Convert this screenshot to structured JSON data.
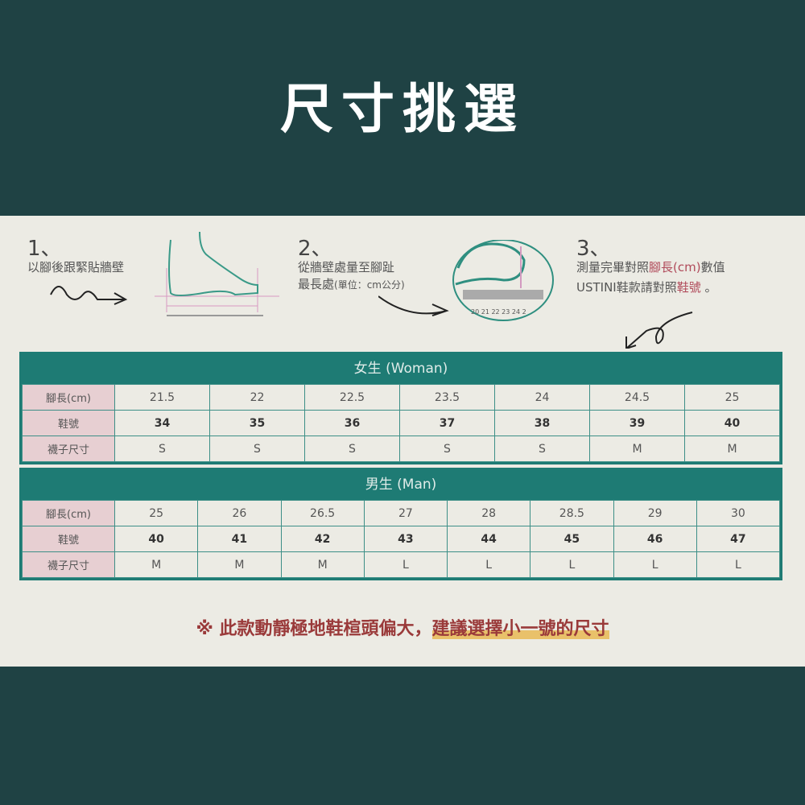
{
  "title": "尺寸挑選",
  "steps": [
    {
      "num": "1、",
      "lines": [
        "以腳後跟緊貼牆壁"
      ]
    },
    {
      "num": "2、",
      "lines": [
        "從牆壁處量至腳趾",
        "最長處",
        "(單位：cm公分)"
      ]
    },
    {
      "num": "3、",
      "line1_a": "測量完畢對照",
      "line1_b": "腳長(cm)",
      "line1_c": "數值",
      "line2_a": "USTINI鞋款請對照",
      "line2_b": "鞋號",
      "line2_c": " 。"
    }
  ],
  "ruler_labels": "20 21 22 23 24 2",
  "colors": {
    "background": "#1f4244",
    "panel": "#ecebe4",
    "teal": "#1e7b74",
    "label_pink": "#e7cfd2",
    "note_red": "#9a3a3a",
    "highlight": "#e9c16a"
  },
  "row_labels": [
    "腳長(cm)",
    "鞋號",
    "襪子尺寸"
  ],
  "woman": {
    "header": "女生 (Woman)",
    "foot_length": [
      "21.5",
      "22",
      "22.5",
      "23.5",
      "24",
      "24.5",
      "25"
    ],
    "shoe_size": [
      "34",
      "35",
      "36",
      "37",
      "38",
      "39",
      "40"
    ],
    "sock_size": [
      "S",
      "S",
      "S",
      "S",
      "S",
      "M",
      "M"
    ]
  },
  "man": {
    "header": "男生 (Man)",
    "foot_length": [
      "25",
      "26",
      "26.5",
      "27",
      "28",
      "28.5",
      "29",
      "30"
    ],
    "shoe_size": [
      "40",
      "41",
      "42",
      "43",
      "44",
      "45",
      "46",
      "47"
    ],
    "sock_size": [
      "M",
      "M",
      "M",
      "L",
      "L",
      "L",
      "L",
      "L"
    ]
  },
  "note": {
    "symbol": "※",
    "text": "此款動靜極地鞋楦頭偏大，",
    "highlight": "建議選擇小一號的尺寸"
  }
}
